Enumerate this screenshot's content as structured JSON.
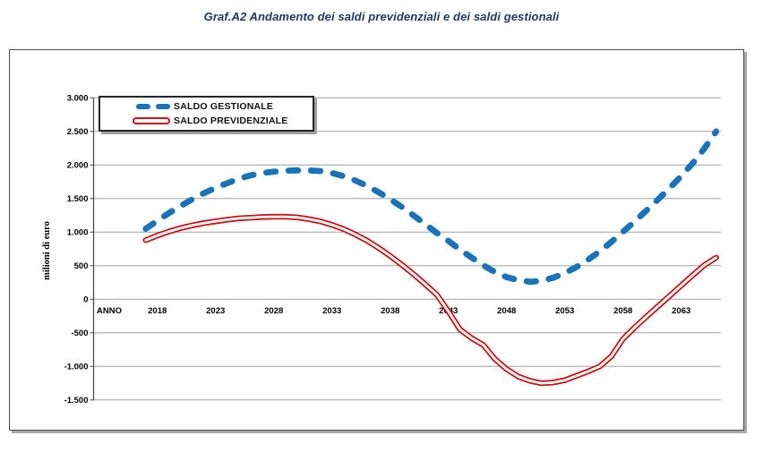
{
  "chart_data": {
    "type": "line",
    "title": "Graf.A2 Andamento dei saldi previdenziali e dei saldi gestionali",
    "xlabel": "ANNO",
    "ylabel": "milioni di euro",
    "ylim": [
      -1500,
      3000
    ],
    "ytick_step": 500,
    "grid": true,
    "legend_position": "top-left",
    "colors": {
      "gridline": "#a0a0a0",
      "axis": "#4a4a4a",
      "gestionale": "#1a72b8",
      "previdenziale": "#c8141a"
    },
    "y_ticks": [
      {
        "label": "3.000",
        "value": 3000
      },
      {
        "label": "2.500",
        "value": 2500
      },
      {
        "label": "2.000",
        "value": 2000
      },
      {
        "label": "1.500",
        "value": 1500
      },
      {
        "label": "1.000",
        "value": 1000
      },
      {
        "label": "500",
        "value": 500
      },
      {
        "label": "0",
        "value": 0
      },
      {
        "label": "-500",
        "value": -500
      },
      {
        "label": "-1.000",
        "value": -1000
      },
      {
        "label": "-1.500",
        "value": -1500
      }
    ],
    "x_ticks": [
      {
        "label": "2018",
        "year": 2018
      },
      {
        "label": "2023",
        "year": 2023
      },
      {
        "label": "2028",
        "year": 2028
      },
      {
        "label": "2033",
        "year": 2033
      },
      {
        "label": "2038",
        "year": 2038
      },
      {
        "label": "2043",
        "year": 2043
      },
      {
        "label": "2048",
        "year": 2048
      },
      {
        "label": "2053",
        "year": 2053
      },
      {
        "label": "2058",
        "year": 2058
      },
      {
        "label": "2063",
        "year": 2063
      }
    ],
    "x": [
      2017,
      2018,
      2019,
      2020,
      2021,
      2022,
      2023,
      2024,
      2025,
      2026,
      2027,
      2028,
      2029,
      2030,
      2031,
      2032,
      2033,
      2034,
      2035,
      2036,
      2037,
      2038,
      2039,
      2040,
      2041,
      2042,
      2043,
      2044,
      2045,
      2046,
      2047,
      2048,
      2049,
      2050,
      2051,
      2052,
      2053,
      2054,
      2055,
      2056,
      2057,
      2058,
      2059,
      2060,
      2061,
      2062,
      2063,
      2064,
      2065,
      2066
    ],
    "series": [
      {
        "name": "SALDO GESTIONALE",
        "color": "#1a72b8",
        "style": "dashed",
        "values": [
          1050,
          1170,
          1285,
          1390,
          1490,
          1580,
          1660,
          1730,
          1795,
          1845,
          1880,
          1900,
          1915,
          1920,
          1920,
          1910,
          1880,
          1835,
          1770,
          1690,
          1595,
          1490,
          1375,
          1250,
          1120,
          990,
          870,
          740,
          620,
          505,
          405,
          330,
          285,
          260,
          275,
          320,
          390,
          480,
          590,
          715,
          855,
          1005,
          1160,
          1320,
          1485,
          1655,
          1835,
          2030,
          2250,
          2500
        ]
      },
      {
        "name": "SALDO PREVIDENZIALE",
        "color": "#c8141a",
        "style": "double-line",
        "values": [
          880,
          950,
          1010,
          1060,
          1100,
          1135,
          1160,
          1185,
          1205,
          1215,
          1225,
          1230,
          1230,
          1220,
          1195,
          1160,
          1110,
          1045,
          965,
          875,
          765,
          645,
          515,
          375,
          225,
          70,
          -180,
          -450,
          -580,
          -680,
          -890,
          -1040,
          -1150,
          -1215,
          -1250,
          -1240,
          -1205,
          -1140,
          -1075,
          -1000,
          -850,
          -590,
          -420,
          -260,
          -105,
          50,
          205,
          360,
          510,
          620
        ]
      }
    ]
  }
}
